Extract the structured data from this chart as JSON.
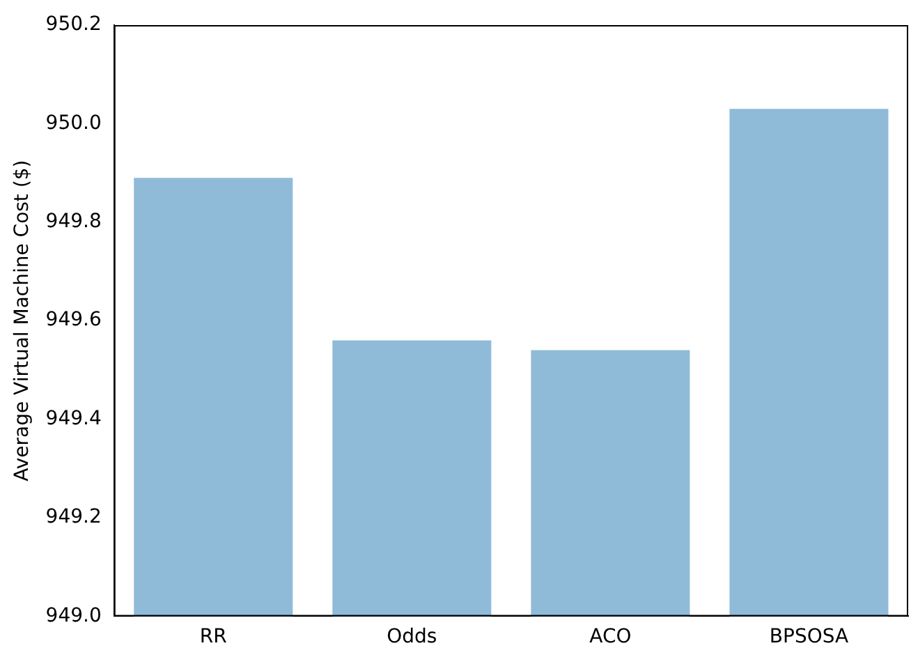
{
  "chart_data": {
    "type": "bar",
    "ylabel": "Average Virtual Machine Cost ($)",
    "categories": [
      "RR",
      "Odds",
      "ACO",
      "BPSOSA"
    ],
    "values": [
      949.89,
      949.56,
      949.54,
      950.03
    ],
    "color": "#8fbbd9",
    "ylim": [
      949.0,
      950.2
    ],
    "yticks": [
      {
        "value": 949,
        "label": "949.0"
      },
      949.2,
      949.4,
      949.6,
      949.8,
      {
        "value": 950,
        "label": "950.0"
      },
      950.2
    ],
    "grid": false,
    "legend": false
  }
}
